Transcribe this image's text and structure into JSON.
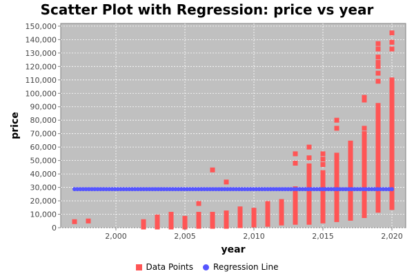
{
  "chart_data": {
    "type": "scatter",
    "title": "Scatter Plot with Regression: price vs year",
    "xlabel": "year",
    "ylabel": "price",
    "xlim": [
      1996,
      2021
    ],
    "ylim": [
      0,
      152000
    ],
    "x_ticks": [
      2000,
      2005,
      2010,
      2015,
      2020
    ],
    "x_tick_labels": [
      "2,000",
      "2,005",
      "2,010",
      "2,015",
      "2,020"
    ],
    "y_ticks": [
      0,
      10000,
      20000,
      30000,
      40000,
      50000,
      60000,
      70000,
      80000,
      90000,
      100000,
      110000,
      120000,
      130000,
      140000,
      150000
    ],
    "y_tick_labels": [
      "0",
      "10,000",
      "20,000",
      "30,000",
      "40,000",
      "50,000",
      "60,000",
      "70,000",
      "80,000",
      "90,000",
      "100,000",
      "110,000",
      "120,000",
      "130,000",
      "140,000",
      "150,000"
    ],
    "grid": true,
    "legend_position": "bottom",
    "series": [
      {
        "name": "Data Points",
        "color": "#ff5555",
        "marker": "square",
        "vertical_ranges": [
          {
            "x": 2002,
            "ymin": 500,
            "ymax": 4500
          },
          {
            "x": 2003,
            "ymin": 500,
            "ymax": 8000
          },
          {
            "x": 2004,
            "ymin": 500,
            "ymax": 10000
          },
          {
            "x": 2005,
            "ymin": 500,
            "ymax": 7000
          },
          {
            "x": 2006,
            "ymin": 1000,
            "ymax": 10000
          },
          {
            "x": 2007,
            "ymin": 1000,
            "ymax": 10000
          },
          {
            "x": 2008,
            "ymin": 1000,
            "ymax": 11000
          },
          {
            "x": 2009,
            "ymin": 1500,
            "ymax": 14000
          },
          {
            "x": 2010,
            "ymin": 2000,
            "ymax": 13000
          },
          {
            "x": 2011,
            "ymin": 2500,
            "ymax": 18000
          },
          {
            "x": 2012,
            "ymin": 3500,
            "ymax": 19500
          },
          {
            "x": 2013,
            "ymin": 4000,
            "ymax": 29000
          },
          {
            "x": 2014,
            "ymin": 4000,
            "ymax": 46000
          },
          {
            "x": 2015,
            "ymin": 5000,
            "ymax": 38000
          },
          {
            "x": 2016,
            "ymin": 6000,
            "ymax": 54000
          },
          {
            "x": 2017,
            "ymin": 7000,
            "ymax": 63000
          },
          {
            "x": 2018,
            "ymin": 9000,
            "ymax": 70000
          },
          {
            "x": 2019,
            "ymin": 13000,
            "ymax": 91000
          },
          {
            "x": 2020,
            "ymin": 15000,
            "ymax": 110000
          }
        ],
        "points": [
          {
            "x": 1997,
            "y": 4500
          },
          {
            "x": 1998,
            "y": 5000
          },
          {
            "x": 2006,
            "y": 18000
          },
          {
            "x": 2007,
            "y": 43000
          },
          {
            "x": 2008,
            "y": 34000
          },
          {
            "x": 2013,
            "y": 48000
          },
          {
            "x": 2013,
            "y": 55000
          },
          {
            "x": 2014,
            "y": 52000
          },
          {
            "x": 2014,
            "y": 60000
          },
          {
            "x": 2015,
            "y": 41000
          },
          {
            "x": 2015,
            "y": 47000
          },
          {
            "x": 2015,
            "y": 51000
          },
          {
            "x": 2015,
            "y": 55000
          },
          {
            "x": 2016,
            "y": 74000
          },
          {
            "x": 2016,
            "y": 80000
          },
          {
            "x": 2018,
            "y": 74000
          },
          {
            "x": 2018,
            "y": 95000
          },
          {
            "x": 2018,
            "y": 97000
          },
          {
            "x": 2019,
            "y": 109000
          },
          {
            "x": 2019,
            "y": 115000
          },
          {
            "x": 2019,
            "y": 120000
          },
          {
            "x": 2019,
            "y": 123000
          },
          {
            "x": 2019,
            "y": 127000
          },
          {
            "x": 2019,
            "y": 133000
          },
          {
            "x": 2019,
            "y": 137000
          },
          {
            "x": 2020,
            "y": 133000
          },
          {
            "x": 2020,
            "y": 138000
          },
          {
            "x": 2020,
            "y": 145000
          }
        ]
      },
      {
        "name": "Regression Line",
        "color": "#5555ff",
        "marker": "circle",
        "x_start": 1997,
        "x_end": 2020,
        "y_value": 28700
      }
    ]
  }
}
